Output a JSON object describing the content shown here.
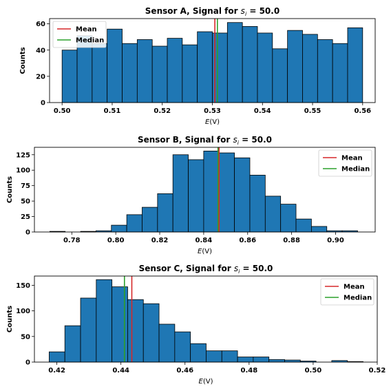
{
  "colors": {
    "bar_fill": "#1f77b4",
    "bar_edge": "#000000",
    "mean": "#d62728",
    "median": "#2ca02c"
  },
  "chart_data": [
    {
      "type": "bar",
      "title_text": "Sensor A, Signal for ",
      "title_symbol": "s",
      "title_subscript": "i",
      "title_value": " = 50.0",
      "xlabel_var": "E",
      "xlabel_unit": "(V)",
      "ylabel": "Counts",
      "xlim": [
        0.4975,
        0.5625
      ],
      "ylim": [
        0,
        64
      ],
      "xticks": [
        0.5,
        0.51,
        0.52,
        0.53,
        0.54,
        0.55,
        0.56
      ],
      "xtick_labels": [
        "0.50",
        "0.51",
        "0.52",
        "0.53",
        "0.54",
        "0.55",
        "0.56"
      ],
      "yticks": [
        0,
        20,
        40,
        60
      ],
      "ytick_labels": [
        "0",
        "20",
        "40",
        "60"
      ],
      "bin_edges": [
        0.5,
        0.503,
        0.506,
        0.509,
        0.512,
        0.515,
        0.518,
        0.521,
        0.524,
        0.527,
        0.53,
        0.533,
        0.536,
        0.539,
        0.542,
        0.545,
        0.548,
        0.551,
        0.554,
        0.557,
        0.56
      ],
      "counts": [
        40,
        51,
        45,
        56,
        45,
        48,
        43,
        49,
        44,
        54,
        53,
        61,
        58,
        53,
        41,
        55,
        52,
        48,
        45,
        57
      ],
      "mean": 0.5305,
      "median": 0.531,
      "legend": {
        "position": "upper left",
        "entries": [
          "Mean",
          "Median"
        ]
      }
    },
    {
      "type": "bar",
      "title_text": "Sensor B, Signal for ",
      "title_symbol": "s",
      "title_subscript": "i",
      "title_value": " = 50.0",
      "xlabel_var": "E",
      "xlabel_unit": "(V)",
      "ylabel": "Counts",
      "xlim": [
        0.763,
        0.918
      ],
      "ylim": [
        0,
        137
      ],
      "xticks": [
        0.78,
        0.8,
        0.82,
        0.84,
        0.86,
        0.88,
        0.9
      ],
      "xtick_labels": [
        "0.78",
        "0.80",
        "0.82",
        "0.84",
        "0.86",
        "0.88",
        "0.90"
      ],
      "yticks": [
        0,
        25,
        50,
        75,
        100,
        125
      ],
      "ytick_labels": [
        "0",
        "25",
        "50",
        "75",
        "100",
        "125"
      ],
      "bin_edges": [
        0.77,
        0.777,
        0.784,
        0.791,
        0.798,
        0.805,
        0.812,
        0.819,
        0.826,
        0.833,
        0.84,
        0.847,
        0.854,
        0.861,
        0.868,
        0.875,
        0.882,
        0.889,
        0.896,
        0.903,
        0.91
      ],
      "counts": [
        1,
        0,
        1,
        2,
        11,
        28,
        40,
        62,
        125,
        117,
        131,
        128,
        120,
        92,
        58,
        45,
        21,
        9,
        2,
        2
      ],
      "mean": 0.847,
      "median": 0.8465,
      "legend": {
        "position": "upper right",
        "entries": [
          "Mean",
          "Median"
        ]
      }
    },
    {
      "type": "bar",
      "title_text": "Sensor C, Signal for ",
      "title_symbol": "s",
      "title_subscript": "i",
      "title_value": " = 50.0",
      "xlabel_var": "E",
      "xlabel_unit": "(V)",
      "ylabel": "Counts",
      "xlim": [
        0.413,
        0.52
      ],
      "ylim": [
        0,
        168
      ],
      "xticks": [
        0.42,
        0.44,
        0.46,
        0.48,
        0.5,
        0.52
      ],
      "xtick_labels": [
        "0.42",
        "0.44",
        "0.46",
        "0.48",
        "0.50",
        "0.52"
      ],
      "yticks": [
        0,
        50,
        100,
        150
      ],
      "ytick_labels": [
        "0",
        "50",
        "100",
        "150"
      ],
      "bin_edges": [
        0.4176,
        0.4225,
        0.4274,
        0.4323,
        0.4372,
        0.4421,
        0.447,
        0.4519,
        0.4568,
        0.4617,
        0.4666,
        0.4715,
        0.4764,
        0.4813,
        0.4862,
        0.4911,
        0.496,
        0.5009,
        0.5058,
        0.5107,
        0.5156
      ],
      "counts": [
        20,
        71,
        125,
        161,
        147,
        122,
        114,
        74,
        59,
        36,
        22,
        22,
        10,
        10,
        5,
        4,
        2,
        0,
        3,
        1
      ],
      "mean": 0.4434,
      "median": 0.4411,
      "legend": {
        "position": "upper right",
        "entries": [
          "Mean",
          "Median"
        ]
      }
    }
  ]
}
